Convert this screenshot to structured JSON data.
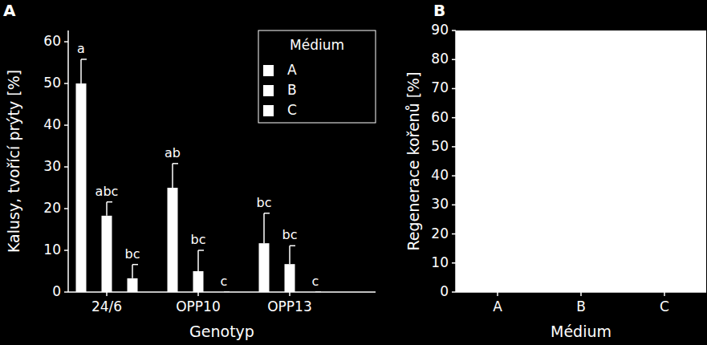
{
  "chart_data": [
    {
      "type": "bar",
      "title": "A",
      "xlabel": "Genotyp",
      "ylabel": "Kalusy, tvořící prýty [%]",
      "legend_title": "Médium",
      "legend": "upper right",
      "categories": [
        "24/6",
        "OPP10",
        "OPP13"
      ],
      "series": [
        {
          "name": "A",
          "color": "#ffffff",
          "values": [
            50,
            25,
            11.7
          ],
          "errors": [
            5.8,
            5.8,
            7.2
          ],
          "annotations": [
            "a",
            "ab",
            "bc"
          ]
        },
        {
          "name": "B",
          "color": "#ffffff",
          "values": [
            18.3,
            5,
            6.7
          ],
          "errors": [
            3.3,
            5,
            4.4
          ],
          "annotations": [
            "abc",
            "bc",
            "bc"
          ]
        },
        {
          "name": "C",
          "color": "#ffffff",
          "values": [
            3.3,
            0,
            0
          ],
          "errors": [
            3.3,
            0,
            0
          ],
          "annotations": [
            "bc",
            "c",
            "c"
          ]
        }
      ],
      "ylim": [
        0,
        62.7
      ],
      "yticks": [
        0,
        10,
        20,
        30,
        40,
        50,
        60
      ],
      "grid": false
    },
    {
      "type": "bar",
      "title": "B",
      "xlabel": "Médium",
      "ylabel": "Regenerace kořenů [%]",
      "categories": [
        "A",
        "B",
        "C"
      ],
      "ylim": [
        0,
        90
      ],
      "yticks": [
        0,
        10,
        20,
        30,
        40,
        50,
        60,
        70,
        80,
        90
      ],
      "grid": false
    }
  ]
}
